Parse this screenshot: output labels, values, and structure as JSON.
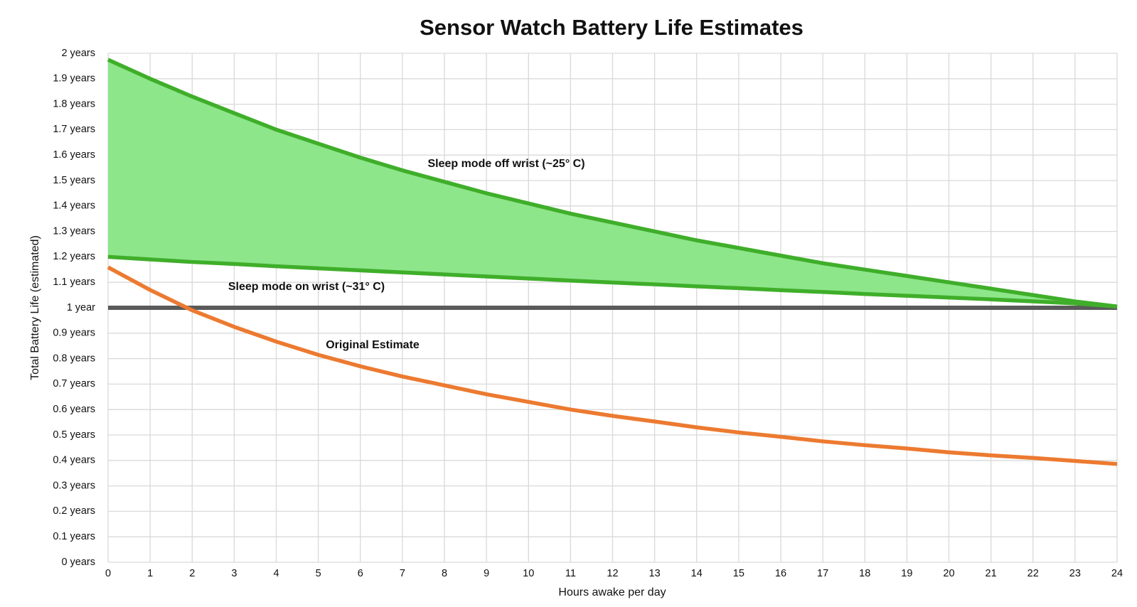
{
  "chart_data": {
    "type": "line",
    "title": "Sensor Watch Battery Life Estimates",
    "x_label": "Hours awake per day",
    "y_label": "Total Battery Life (estimated)",
    "x": [
      0,
      1,
      2,
      3,
      4,
      5,
      6,
      7,
      8,
      9,
      10,
      11,
      12,
      13,
      14,
      15,
      16,
      17,
      18,
      19,
      20,
      21,
      22,
      23,
      24
    ],
    "series": [
      {
        "name": "Sleep mode off wrist (~25° C)",
        "color": "#3fae2a",
        "fill_color": "#8de68a",
        "values": [
          1.975,
          1.9,
          1.83,
          1.765,
          1.7,
          1.645,
          1.59,
          1.54,
          1.495,
          1.45,
          1.41,
          1.37,
          1.335,
          1.3,
          1.265,
          1.235,
          1.205,
          1.175,
          1.15,
          1.125,
          1.1,
          1.075,
          1.05,
          1.025,
          1.005
        ]
      },
      {
        "name": "Sleep mode on wrist (~31° C)",
        "color": "#3fae2a",
        "values": [
          1.2,
          1.19,
          1.18,
          1.172,
          1.163,
          1.155,
          1.147,
          1.139,
          1.131,
          1.123,
          1.115,
          1.107,
          1.099,
          1.092,
          1.084,
          1.077,
          1.069,
          1.062,
          1.054,
          1.047,
          1.04,
          1.033,
          1.025,
          1.017,
          1.005
        ]
      },
      {
        "name": "Original Estimate",
        "color": "#ec7a30",
        "values": [
          1.159,
          1.07,
          0.99,
          0.925,
          0.867,
          0.815,
          0.77,
          0.73,
          0.695,
          0.66,
          0.63,
          0.6,
          0.575,
          0.553,
          0.53,
          0.51,
          0.493,
          0.475,
          0.46,
          0.447,
          0.432,
          0.42,
          0.41,
          0.398,
          0.386
        ]
      }
    ],
    "reference_line": 1,
    "reference_color": "#5a5a5a",
    "xlim": [
      0,
      24
    ],
    "xticks": [
      0,
      1,
      2,
      3,
      4,
      5,
      6,
      7,
      8,
      9,
      10,
      11,
      12,
      13,
      14,
      15,
      16,
      17,
      18,
      19,
      20,
      21,
      22,
      23,
      24
    ],
    "ylim": [
      0,
      2
    ],
    "yticks": [
      {
        "value": 0,
        "label": "0 years"
      },
      {
        "value": 0.1,
        "label": "0.1 years"
      },
      {
        "value": 0.2,
        "label": "0.2 years"
      },
      {
        "value": 0.3,
        "label": "0.3 years"
      },
      {
        "value": 0.4,
        "label": "0.4 years"
      },
      {
        "value": 0.5,
        "label": "0.5 years"
      },
      {
        "value": 0.6,
        "label": "0.6 years"
      },
      {
        "value": 0.7,
        "label": "0.7 years"
      },
      {
        "value": 0.8,
        "label": "0.8 years"
      },
      {
        "value": 0.9,
        "label": "0.9 years"
      },
      {
        "value": 1,
        "label": "1 year"
      },
      {
        "value": 1.1,
        "label": "1.1 years"
      },
      {
        "value": 1.2,
        "label": "1.2 years"
      },
      {
        "value": 1.3,
        "label": "1.3 years"
      },
      {
        "value": 1.4,
        "label": "1.4 years"
      },
      {
        "value": 1.5,
        "label": "1.5 years"
      },
      {
        "value": 1.6,
        "label": "1.6 years"
      },
      {
        "value": 1.7,
        "label": "1.7 years"
      },
      {
        "value": 1.8,
        "label": "1.8 years"
      },
      {
        "value": 1.9,
        "label": "1.9 years"
      },
      {
        "value": 2,
        "label": "2 years"
      }
    ],
    "grid": true
  }
}
